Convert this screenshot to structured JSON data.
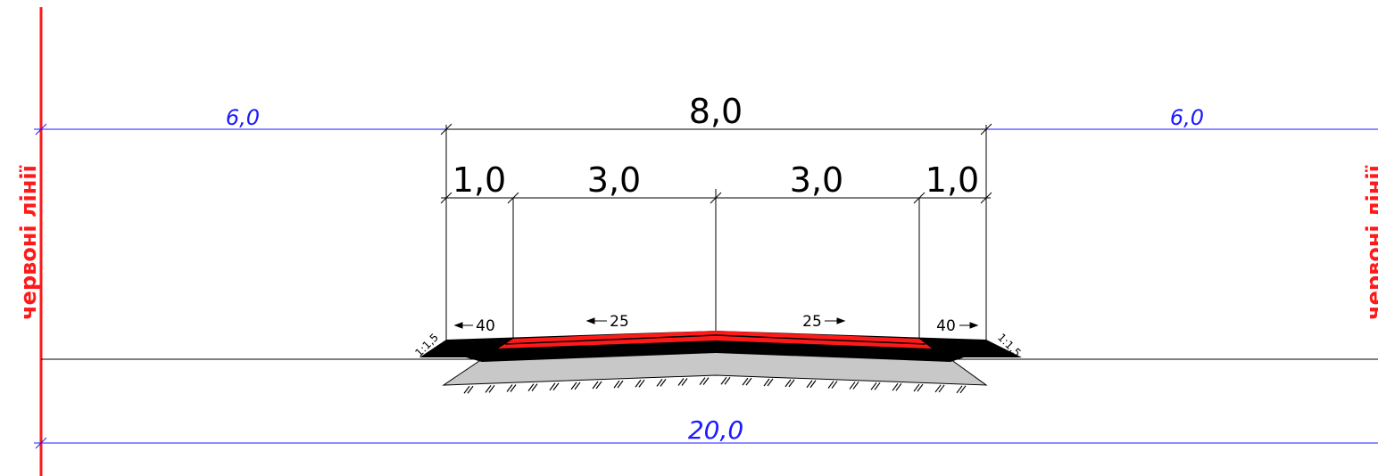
{
  "dimensions": {
    "top": [
      "6,0",
      "8,0",
      "6,0"
    ],
    "carriageway": [
      "1,0",
      "3,0",
      "3,0",
      "1,0"
    ],
    "total": "20,0"
  },
  "slopes": [
    "40",
    "25",
    "25",
    "40"
  ],
  "embankment_slopes": [
    "1:1,5",
    "1:1,5"
  ],
  "red_lines": [
    "червоні лінії",
    "червоні лінії"
  ]
}
